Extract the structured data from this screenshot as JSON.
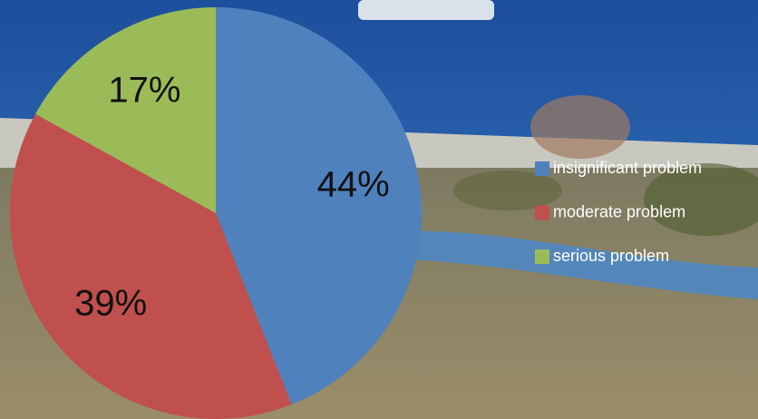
{
  "chart_data": {
    "type": "pie",
    "categories": [
      "insignificant problem",
      "moderate problem",
      "serious problem"
    ],
    "values": [
      44,
      39,
      17
    ],
    "value_labels": [
      "44%",
      "39%",
      "17%"
    ],
    "colors": [
      "#4f81bd",
      "#c0504d",
      "#9bbb59"
    ],
    "legend": "right"
  }
}
